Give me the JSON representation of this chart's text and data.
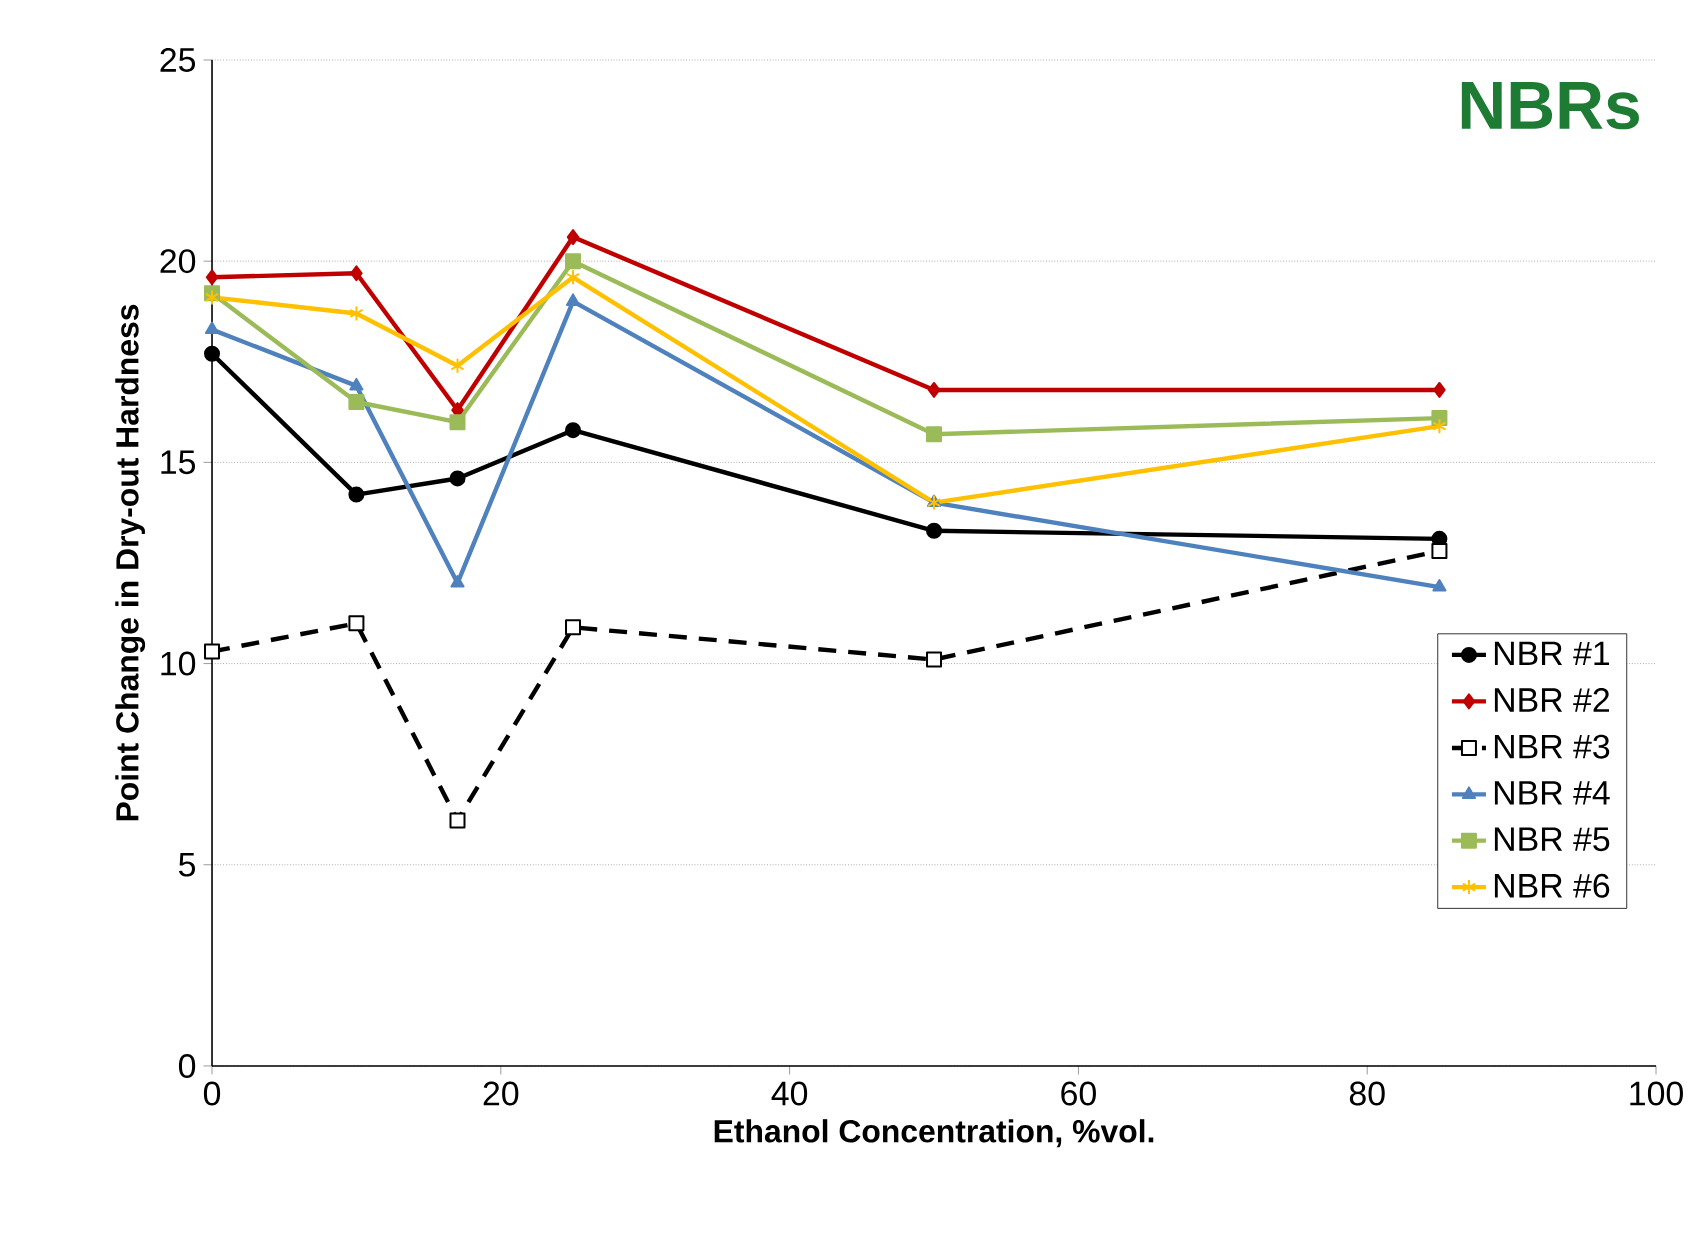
{
  "chart_data": {
    "type": "line",
    "title": "NBRs",
    "xlabel": "Ethanol Concentration, %vol.",
    "ylabel": "Point Change in Dry-out Hardness",
    "x": [
      0,
      10,
      17,
      25,
      50,
      85
    ],
    "xlim": [
      0,
      100
    ],
    "xticks": [
      0,
      20,
      40,
      60,
      80,
      100
    ],
    "ylim": [
      0,
      25
    ],
    "yticks": [
      0,
      5,
      10,
      15,
      20,
      25
    ],
    "grid": "y",
    "legend": "right",
    "series": [
      {
        "name": "NBR #1",
        "color": "#000000",
        "marker": "circle",
        "line_style": "solid",
        "values": [
          17.7,
          14.2,
          14.6,
          15.8,
          13.3,
          13.1
        ]
      },
      {
        "name": "NBR #2",
        "color": "#c00000",
        "marker": "diamond",
        "line_style": "solid",
        "values": [
          19.6,
          19.7,
          16.3,
          20.6,
          16.8,
          16.8
        ]
      },
      {
        "name": "NBR #3",
        "color": "#000000",
        "marker": "square",
        "line_style": "dashed",
        "values": [
          10.3,
          11.0,
          6.1,
          10.9,
          10.1,
          12.8
        ]
      },
      {
        "name": "NBR #4",
        "color": "#4f81bd",
        "marker": "triangle",
        "line_style": "solid",
        "values": [
          18.3,
          16.9,
          12.0,
          19.0,
          14.0,
          11.9
        ]
      },
      {
        "name": "NBR #5",
        "color": "#9bbb59",
        "marker": "square",
        "line_style": "solid",
        "values": [
          19.2,
          16.5,
          16.0,
          20.0,
          15.7,
          16.1
        ]
      },
      {
        "name": "NBR #6",
        "color": "#ffc000",
        "marker": "cross",
        "line_style": "solid",
        "values": [
          19.1,
          18.7,
          17.4,
          19.6,
          14.0,
          15.9
        ]
      }
    ]
  }
}
